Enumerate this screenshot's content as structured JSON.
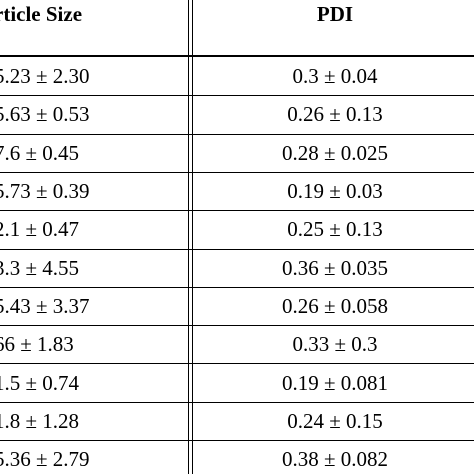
{
  "table": {
    "header": [
      "rticle Size",
      "PDI"
    ],
    "rows": [
      [
        "5.23 ± 2.30",
        "0.3 ± 0.04"
      ],
      [
        "5.63 ± 0.53",
        "0.26 ± 0.13"
      ],
      [
        "7.6 ± 0.45",
        "0.28 ± 0.025"
      ],
      [
        "5.73 ± 0.39",
        "0.19 ± 0.03"
      ],
      [
        "2.1 ± 0.47",
        "0.25 ± 0.13"
      ],
      [
        "3.3 ± 4.55",
        "0.36 ± 0.035"
      ],
      [
        "5.43 ± 3.37",
        "0.26 ± 0.058"
      ],
      [
        "66 ± 1.83",
        "0.33 ± 0.3"
      ],
      [
        "1.5 ± 0.74",
        "0.19 ± 0.081"
      ],
      [
        "1.8 ± 1.28",
        "0.24 ± 0.15"
      ],
      [
        "5.36 ± 2.79",
        "0.38 ± 0.082"
      ]
    ]
  }
}
